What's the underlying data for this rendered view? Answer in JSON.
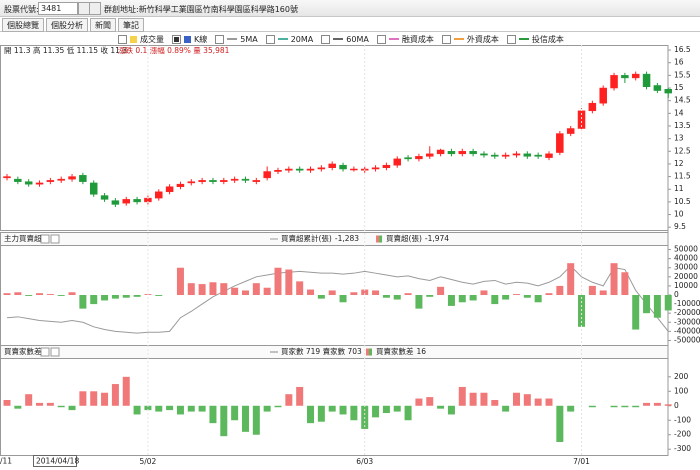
{
  "toolbar": {
    "label": "股票代號:",
    "code": "3481",
    "name": "群創",
    "address": "地址:新竹科學工業園區竹南科學園區科學路160號"
  },
  "tabs": [
    "個股總覽",
    "個股分析",
    "新聞",
    "筆記"
  ],
  "legend": [
    {
      "label": "成交量",
      "checked": false,
      "color": "#f5d24a"
    },
    {
      "label": "K線",
      "checked": true,
      "color": "#3a62c4"
    },
    {
      "label": "5MA",
      "checked": false,
      "color": "#9a9a9a"
    },
    {
      "label": "20MA",
      "checked": false,
      "color": "#4fb0a0"
    },
    {
      "label": "60MA",
      "checked": false,
      "color": "#666666"
    },
    {
      "label": "融資成本",
      "checked": false,
      "color": "#e070c0"
    },
    {
      "label": "外資成本",
      "checked": false,
      "color": "#f0a040"
    },
    {
      "label": "投信成本",
      "checked": false,
      "color": "#2a9a3a"
    }
  ],
  "quote": {
    "ohlc": "開 11.3 高 11.35 低 11.15 收 11.3",
    "change": "漲跌 0.1 漲幅 0.89% 量 35,981"
  },
  "cursor_date": "2014/04/18",
  "edge_label": "/11",
  "categories": [
    null,
    null,
    null,
    null,
    null,
    null,
    null,
    null,
    null,
    null,
    null,
    null,
    null,
    "5/02",
    null,
    null,
    null,
    null,
    null,
    null,
    null,
    null,
    null,
    null,
    null,
    null,
    null,
    null,
    null,
    null,
    null,
    null,
    null,
    "6/03",
    null,
    null,
    null,
    null,
    null,
    null,
    null,
    null,
    null,
    null,
    null,
    null,
    null,
    null,
    null,
    null,
    null,
    null,
    null,
    "7/01",
    null,
    null,
    null,
    null,
    null,
    null,
    null,
    null
  ],
  "chart_data": [
    {
      "type": "candlestick",
      "up_color": "#ff2020",
      "down_color": "#1f9a3a",
      "open": [
        11.45,
        11.4,
        11.3,
        11.2,
        11.3,
        11.35,
        11.4,
        11.55,
        11.25,
        10.75,
        10.55,
        10.45,
        10.6,
        10.5,
        10.65,
        10.9,
        11.1,
        11.25,
        11.3,
        11.35,
        11.3,
        11.35,
        11.4,
        11.3,
        11.45,
        11.7,
        11.75,
        11.8,
        11.75,
        11.8,
        11.85,
        11.95,
        11.8,
        11.75,
        11.8,
        11.85,
        11.95,
        12.25,
        12.2,
        12.3,
        12.4,
        12.5,
        12.4,
        12.5,
        12.4,
        12.35,
        12.3,
        12.35,
        12.4,
        12.35,
        12.25,
        12.45,
        13.2,
        13.4,
        14.1,
        14.4,
        15.0,
        15.5,
        15.4,
        15.55,
        15.1,
        14.95
      ],
      "high": [
        11.6,
        11.5,
        11.4,
        11.35,
        11.45,
        11.5,
        11.6,
        11.65,
        11.35,
        10.85,
        10.65,
        10.7,
        10.7,
        10.75,
        11.0,
        11.2,
        11.3,
        11.4,
        11.45,
        11.45,
        11.45,
        11.5,
        11.5,
        11.45,
        11.9,
        11.85,
        11.9,
        11.9,
        11.9,
        11.95,
        12.1,
        12.05,
        11.9,
        11.9,
        11.95,
        12.05,
        12.3,
        12.35,
        12.4,
        12.7,
        12.6,
        12.6,
        12.6,
        12.6,
        12.5,
        12.45,
        12.45,
        12.5,
        12.5,
        12.45,
        12.5,
        13.3,
        13.5,
        14.2,
        14.5,
        15.1,
        15.6,
        15.6,
        15.65,
        15.65,
        15.2,
        15.0
      ],
      "low": [
        11.35,
        11.2,
        11.1,
        11.1,
        11.2,
        11.25,
        11.3,
        11.2,
        10.7,
        10.5,
        10.3,
        10.35,
        10.4,
        10.4,
        10.55,
        10.8,
        11.0,
        11.15,
        11.2,
        11.2,
        11.2,
        11.25,
        11.25,
        11.2,
        11.35,
        11.6,
        11.65,
        11.65,
        11.65,
        11.7,
        11.75,
        11.7,
        11.7,
        11.65,
        11.7,
        11.75,
        11.85,
        12.1,
        12.1,
        12.2,
        12.3,
        12.3,
        12.3,
        12.3,
        12.25,
        12.2,
        12.2,
        12.25,
        12.2,
        12.2,
        12.15,
        12.35,
        13.1,
        13.3,
        14.0,
        14.3,
        14.9,
        15.2,
        15.3,
        14.95,
        14.8,
        14.6
      ],
      "close": [
        11.5,
        11.3,
        11.2,
        11.25,
        11.35,
        11.4,
        11.5,
        11.3,
        10.8,
        10.6,
        10.4,
        10.6,
        10.5,
        10.65,
        10.9,
        11.1,
        11.2,
        11.3,
        11.35,
        11.3,
        11.35,
        11.4,
        11.35,
        11.35,
        11.7,
        11.75,
        11.8,
        11.75,
        11.8,
        11.85,
        12.0,
        11.8,
        11.8,
        11.8,
        11.85,
        11.95,
        12.2,
        12.2,
        12.3,
        12.4,
        12.55,
        12.4,
        12.5,
        12.4,
        12.35,
        12.3,
        12.35,
        12.4,
        12.3,
        12.3,
        12.4,
        13.2,
        13.4,
        14.1,
        14.4,
        15.0,
        15.5,
        15.4,
        15.55,
        15.05,
        14.9,
        14.8
      ],
      "ylim": [
        9.35,
        16.7
      ],
      "yticks": [
        9.5,
        10,
        10.5,
        11,
        11.5,
        12,
        12.5,
        13,
        13.5,
        14,
        14.5,
        15,
        15.5,
        16,
        16.5
      ]
    },
    {
      "type": "bar_line",
      "title": "主力買賣超",
      "ylim": [
        -55000,
        55000
      ],
      "yticks": [
        -50000,
        -40000,
        -30000,
        -20000,
        -10000,
        0,
        10000,
        20000,
        30000,
        40000,
        50000
      ],
      "series": [
        {
          "name": "買賣超累計(張)",
          "legend_value": "-1,283",
          "kind": "line",
          "color": "#9a9a9a",
          "values": [
            -25000,
            -24000,
            -26000,
            -28000,
            -29000,
            -30000,
            -28000,
            -30000,
            -35000,
            -38000,
            -40000,
            -41000,
            -42000,
            -41000,
            -41000,
            -40000,
            -25000,
            -18000,
            -10000,
            -2000,
            4000,
            10000,
            15000,
            20000,
            22000,
            24000,
            25000,
            26000,
            25000,
            24000,
            24000,
            23000,
            24000,
            26000,
            24000,
            22000,
            20000,
            21000,
            18000,
            16000,
            20000,
            17000,
            14000,
            12000,
            15000,
            16000,
            12000,
            14000,
            13000,
            10000,
            14000,
            20000,
            32000,
            20000,
            14000,
            10000,
            30000,
            28000,
            5000,
            -10000,
            -25000,
            -40000
          ]
        },
        {
          "name": "買賣超(張)",
          "legend_value": "-1,974",
          "kind": "bar",
          "up_color": "#f07878",
          "down_color": "#5cb85c",
          "values": [
            2000,
            3000,
            -1000,
            2000,
            1000,
            -1000,
            3000,
            -15000,
            -10000,
            -6000,
            -4000,
            -3000,
            -2000,
            1000,
            -1000,
            0,
            30000,
            13000,
            12000,
            14000,
            13000,
            8000,
            5000,
            13000,
            8000,
            30000,
            28000,
            15000,
            6000,
            -4000,
            5000,
            -8000,
            3000,
            6000,
            5000,
            -3000,
            -5000,
            2000,
            -15000,
            -2000,
            9000,
            -12000,
            -8000,
            -6000,
            5000,
            -10000,
            -5000,
            1000,
            -3000,
            -8000,
            2000,
            10000,
            35000,
            -35000,
            10000,
            5000,
            35000,
            25000,
            -38000,
            -20000,
            -25000,
            -17000
          ]
        }
      ]
    },
    {
      "type": "bar_line",
      "title": "買賣家數差",
      "legend_note": "買家數 719 賣家數 703",
      "ylim": [
        -340,
        330
      ],
      "yticks": [
        -300,
        -200,
        -100,
        0,
        100,
        200
      ],
      "series": [
        {
          "name": "買賣家數差",
          "legend_value": "16",
          "kind": "bar",
          "up_color": "#f07878",
          "down_color": "#5cb85c",
          "values": [
            40,
            -20,
            80,
            20,
            20,
            -10,
            -30,
            100,
            100,
            90,
            150,
            200,
            -60,
            -30,
            -40,
            -30,
            -60,
            -40,
            -40,
            -120,
            -210,
            -100,
            -180,
            -200,
            -40,
            -10,
            80,
            130,
            -120,
            -110,
            -40,
            -60,
            -100,
            -160,
            -80,
            -50,
            -40,
            -100,
            50,
            60,
            -20,
            -60,
            130,
            90,
            90,
            40,
            -40,
            90,
            80,
            50,
            50,
            -250,
            -40,
            0,
            -10,
            0,
            -10,
            -10,
            -10,
            20,
            20,
            10
          ]
        }
      ]
    }
  ]
}
